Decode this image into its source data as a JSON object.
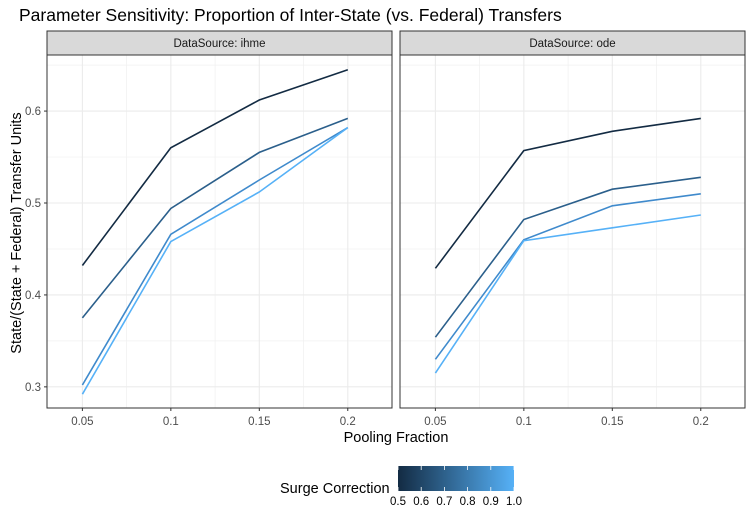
{
  "chart_data": {
    "type": "line",
    "title": "Parameter Sensitivity: Proportion of Inter-State (vs. Federal) Transfers",
    "xlabel": "Pooling Fraction",
    "ylabel": "State/(State + Federal) Transfer Units",
    "x": [
      0.05,
      0.1,
      0.15,
      0.2
    ],
    "x_tick_labels": [
      "0.05",
      "0.1",
      "0.15",
      "0.2"
    ],
    "y_ticks": [
      0.3,
      0.4,
      0.5,
      0.6
    ],
    "y_tick_labels": [
      "0.3",
      "0.4",
      "0.5",
      "0.6"
    ],
    "xlim": [
      0.03,
      0.225
    ],
    "ylim": [
      0.277,
      0.661
    ],
    "grid": true,
    "legend_position": "bottom",
    "color_scale": {
      "title": "Surge Correction",
      "low_color": "#132B43",
      "high_color": "#56B1F7",
      "min": 0.5,
      "max": 1.0,
      "ticks": [
        0.5,
        0.6,
        0.7,
        0.8,
        0.9,
        1.0
      ],
      "tick_labels": [
        "0.5",
        "0.6",
        "0.7",
        "0.8",
        "0.9",
        "1.0"
      ]
    },
    "panels": [
      {
        "strip_label": "DataSource: ihme",
        "series": [
          {
            "surge_correction": 0.5,
            "color": "#132B43",
            "values": [
              0.432,
              0.56,
              0.612,
              0.645
            ]
          },
          {
            "surge_correction": 0.7,
            "color": "#2B5F8B",
            "values": [
              0.375,
              0.494,
              0.555,
              0.592
            ]
          },
          {
            "surge_correction": 0.9,
            "color": "#3F8ACC",
            "values": [
              0.302,
              0.466,
              0.525,
              0.582
            ]
          },
          {
            "surge_correction": 1.0,
            "color": "#56B1F7",
            "values": [
              0.292,
              0.458,
              0.512,
              0.582
            ]
          }
        ]
      },
      {
        "strip_label": "DataSource: ode",
        "series": [
          {
            "surge_correction": 0.5,
            "color": "#132B43",
            "values": [
              0.429,
              0.557,
              0.578,
              0.592
            ]
          },
          {
            "surge_correction": 0.7,
            "color": "#2B5F8B",
            "values": [
              0.354,
              0.482,
              0.515,
              0.528
            ]
          },
          {
            "surge_correction": 0.9,
            "color": "#3F8ACC",
            "values": [
              0.33,
              0.46,
              0.497,
              0.51
            ]
          },
          {
            "surge_correction": 1.0,
            "color": "#56B1F7",
            "values": [
              0.315,
              0.459,
              0.473,
              0.487
            ]
          }
        ]
      }
    ]
  }
}
